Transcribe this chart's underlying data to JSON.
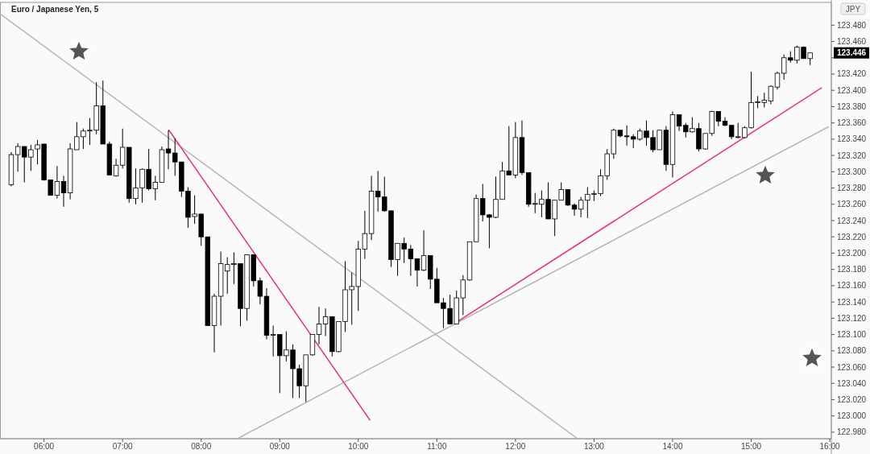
{
  "chart_data": {
    "type": "candlestick",
    "title": "Euro / Japanese Yen, 5",
    "annotations": [
      "JPY",
      {
        "text": "123.446",
        "y": 123.446
      }
    ],
    "xlim": [
      5.44,
      16.02
    ],
    "xticks": [
      {
        "value": 6,
        "label": "06:00"
      },
      {
        "value": 7,
        "label": "07:00"
      },
      {
        "value": 8,
        "label": "08:00"
      },
      {
        "value": 9,
        "label": "09:00"
      },
      {
        "value": 10,
        "label": "10:00"
      },
      {
        "value": 11,
        "label": "11:00"
      },
      {
        "value": 12,
        "label": "12:00"
      },
      {
        "value": 13,
        "label": "13:00"
      },
      {
        "value": 14,
        "label": "14:00"
      },
      {
        "value": 15,
        "label": "15:00"
      },
      {
        "value": 16,
        "label": "16:00"
      }
    ],
    "ylim": [
      122.972,
      123.508
    ],
    "yticks": [
      {
        "value": 122.98,
        "label": "122.980"
      },
      {
        "value": 123,
        "label": "123.000"
      },
      {
        "value": 123.02,
        "label": "123.020"
      },
      {
        "value": 123.04,
        "label": "123.040"
      },
      {
        "value": 123.06,
        "label": "123.060"
      },
      {
        "value": 123.08,
        "label": "123.080"
      },
      {
        "value": 123.1,
        "label": "123.100"
      },
      {
        "value": 123.12,
        "label": "123.120"
      },
      {
        "value": 123.14,
        "label": "123.140"
      },
      {
        "value": 123.16,
        "label": "123.160"
      },
      {
        "value": 123.18,
        "label": "123.180"
      },
      {
        "value": 123.2,
        "label": "123.200"
      },
      {
        "value": 123.22,
        "label": "123.220"
      },
      {
        "value": 123.24,
        "label": "123.240"
      },
      {
        "value": 123.26,
        "label": "123.260"
      },
      {
        "value": 123.28,
        "label": "123.280"
      },
      {
        "value": 123.3,
        "label": "123.300"
      },
      {
        "value": 123.32,
        "label": "123.320"
      },
      {
        "value": 123.34,
        "label": "123.340"
      },
      {
        "value": 123.36,
        "label": "123.360"
      },
      {
        "value": 123.38,
        "label": "123.380"
      },
      {
        "value": 123.4,
        "label": "123.400"
      },
      {
        "value": 123.42,
        "label": "123.420"
      },
      {
        "value": 123.44,
        "label": null
      },
      {
        "value": 123.46,
        "label": "123.460"
      },
      {
        "value": 123.48,
        "label": "123.480"
      }
    ],
    "grid": false,
    "x": [
      5.583,
      5.667,
      5.75,
      5.833,
      5.917,
      6,
      6.083,
      6.167,
      6.25,
      6.333,
      6.417,
      6.5,
      6.583,
      6.667,
      6.75,
      6.833,
      6.917,
      7,
      7.083,
      7.167,
      7.25,
      7.333,
      7.417,
      7.5,
      7.583,
      7.667,
      7.75,
      7.833,
      7.917,
      8,
      8.083,
      8.167,
      8.25,
      8.333,
      8.417,
      8.5,
      8.583,
      8.667,
      8.75,
      8.833,
      8.917,
      9,
      9.083,
      9.167,
      9.25,
      9.333,
      9.417,
      9.5,
      9.583,
      9.667,
      9.75,
      9.833,
      9.917,
      10,
      10.083,
      10.167,
      10.25,
      10.333,
      10.417,
      10.5,
      10.583,
      10.667,
      10.75,
      10.833,
      10.917,
      11,
      11.083,
      11.167,
      11.25,
      11.333,
      11.417,
      11.5,
      11.583,
      11.667,
      11.75,
      11.833,
      11.917,
      12,
      12.083,
      12.167,
      12.25,
      12.333,
      12.417,
      12.5,
      12.583,
      12.667,
      12.75,
      12.833,
      12.917,
      13,
      13.083,
      13.167,
      13.25,
      13.333,
      13.417,
      13.5,
      13.583,
      13.667,
      13.75,
      13.833,
      13.917,
      14,
      14.083,
      14.167,
      14.25,
      14.333,
      14.417,
      14.5,
      14.583,
      14.667,
      14.75,
      14.833,
      14.917,
      15,
      15.083,
      15.167,
      15.25,
      15.333,
      15.417,
      15.5,
      15.583,
      15.667,
      15.75
    ],
    "ohlc": [
      [
        123.284,
        123.324,
        123.282,
        123.321
      ],
      [
        123.321,
        123.335,
        123.3,
        123.331
      ],
      [
        123.331,
        123.331,
        123.287,
        123.318
      ],
      [
        123.318,
        123.333,
        123.301,
        123.327
      ],
      [
        123.328,
        123.339,
        123.309,
        123.333
      ],
      [
        123.334,
        123.334,
        123.289,
        123.29
      ],
      [
        123.29,
        123.29,
        123.271,
        123.271
      ],
      [
        123.271,
        123.307,
        123.267,
        123.288
      ],
      [
        123.288,
        123.295,
        123.257,
        123.274
      ],
      [
        123.274,
        123.335,
        123.266,
        123.328
      ],
      [
        123.327,
        123.361,
        123.327,
        123.343
      ],
      [
        123.343,
        123.353,
        123.328,
        123.35
      ],
      [
        123.35,
        123.366,
        123.333,
        123.351
      ],
      [
        123.351,
        123.41,
        123.346,
        123.381
      ],
      [
        123.381,
        123.412,
        123.334,
        123.334
      ],
      [
        123.334,
        123.337,
        123.296,
        123.296
      ],
      [
        123.295,
        123.316,
        123.294,
        123.308
      ],
      [
        123.308,
        123.353,
        123.304,
        123.33
      ],
      [
        123.33,
        123.33,
        123.262,
        123.267
      ],
      [
        123.267,
        123.304,
        123.26,
        123.28
      ],
      [
        123.28,
        123.304,
        123.262,
        123.303
      ],
      [
        123.303,
        123.328,
        123.277,
        123.279
      ],
      [
        123.279,
        123.295,
        123.265,
        123.287
      ],
      [
        123.287,
        123.331,
        123.287,
        123.327
      ],
      [
        123.328,
        123.351,
        123.303,
        123.323
      ],
      [
        123.323,
        123.341,
        123.295,
        123.312
      ],
      [
        123.312,
        123.312,
        123.269,
        123.276
      ],
      [
        123.276,
        123.281,
        123.231,
        123.244
      ],
      [
        123.245,
        123.271,
        123.236,
        123.248
      ],
      [
        123.248,
        123.248,
        123.209,
        123.22
      ],
      [
        123.22,
        123.22,
        123.111,
        123.111
      ],
      [
        123.111,
        123.15,
        123.078,
        123.147
      ],
      [
        123.147,
        123.202,
        123.111,
        123.187
      ],
      [
        123.178,
        123.195,
        123.15,
        123.186
      ],
      [
        123.186,
        123.201,
        123.162,
        123.187
      ],
      [
        123.187,
        123.187,
        123.11,
        123.132
      ],
      [
        123.132,
        123.198,
        123.117,
        123.198
      ],
      [
        123.198,
        123.198,
        123.159,
        123.166
      ],
      [
        123.166,
        123.17,
        123.137,
        123.147
      ],
      [
        123.147,
        123.157,
        123.094,
        123.099
      ],
      [
        123.099,
        123.111,
        123.073,
        123.1
      ],
      [
        123.1,
        123.1,
        123.028,
        123.074
      ],
      [
        123.074,
        123.104,
        123.067,
        123.081
      ],
      [
        123.081,
        123.088,
        123.022,
        123.058
      ],
      [
        123.058,
        123.063,
        123.022,
        123.037
      ],
      [
        123.037,
        123.075,
        123.017,
        123.075
      ],
      [
        123.075,
        123.1,
        123.074,
        123.1
      ],
      [
        123.1,
        123.134,
        123.088,
        123.113
      ],
      [
        123.113,
        123.132,
        123.098,
        123.122
      ],
      [
        123.122,
        123.122,
        123.073,
        123.079
      ],
      [
        123.079,
        123.116,
        123.078,
        123.116
      ],
      [
        123.116,
        123.19,
        123.103,
        123.155
      ],
      [
        123.155,
        123.176,
        123.112,
        123.159
      ],
      [
        123.159,
        123.215,
        123.129,
        123.205
      ],
      [
        123.205,
        123.252,
        123.193,
        123.224
      ],
      [
        123.224,
        123.295,
        123.216,
        123.276
      ],
      [
        123.276,
        123.301,
        123.251,
        123.269
      ],
      [
        123.269,
        123.294,
        123.251,
        123.252
      ],
      [
        123.252,
        123.252,
        123.183,
        123.192
      ],
      [
        123.192,
        123.212,
        123.172,
        123.212
      ],
      [
        123.212,
        123.219,
        123.188,
        123.205
      ],
      [
        123.205,
        123.21,
        123.172,
        123.193
      ],
      [
        123.193,
        123.193,
        123.159,
        123.179
      ],
      [
        123.179,
        123.228,
        123.178,
        123.197
      ],
      [
        123.197,
        123.197,
        123.156,
        123.168
      ],
      [
        123.168,
        123.182,
        123.139,
        123.139
      ],
      [
        123.139,
        123.145,
        123.108,
        123.132
      ],
      [
        123.132,
        123.149,
        123.113,
        123.113
      ],
      [
        123.113,
        123.154,
        123.113,
        123.145
      ],
      [
        123.145,
        123.173,
        123.124,
        123.167
      ],
      [
        123.167,
        123.214,
        123.166,
        123.214
      ],
      [
        123.214,
        123.272,
        123.214,
        123.267
      ],
      [
        123.267,
        123.285,
        123.239,
        123.247
      ],
      [
        123.247,
        123.248,
        123.206,
        123.244
      ],
      [
        123.244,
        123.294,
        123.243,
        123.266
      ],
      [
        123.266,
        123.312,
        123.266,
        123.301
      ],
      [
        123.301,
        123.356,
        123.296,
        123.296
      ],
      [
        123.296,
        123.361,
        123.292,
        123.342
      ],
      [
        123.342,
        123.363,
        123.296,
        123.299
      ],
      [
        123.299,
        123.299,
        123.257,
        123.26
      ],
      [
        123.26,
        123.274,
        123.249,
        123.261
      ],
      [
        123.26,
        123.277,
        123.244,
        123.266
      ],
      [
        123.266,
        123.287,
        123.242,
        123.242
      ],
      [
        123.242,
        123.265,
        123.221,
        123.265
      ],
      [
        123.265,
        123.287,
        123.265,
        123.278
      ],
      [
        123.278,
        123.278,
        123.258,
        123.259
      ],
      [
        123.259,
        123.261,
        123.246,
        123.254
      ],
      [
        123.254,
        123.269,
        123.244,
        123.265
      ],
      [
        123.265,
        123.281,
        123.243,
        123.272
      ],
      [
        123.272,
        123.277,
        123.264,
        123.273
      ],
      [
        123.273,
        123.303,
        123.27,
        123.295
      ],
      [
        123.295,
        123.328,
        123.29,
        123.322
      ],
      [
        123.322,
        123.353,
        123.316,
        123.351
      ],
      [
        123.351,
        123.351,
        123.342,
        123.344
      ],
      [
        123.344,
        123.357,
        123.332,
        123.343
      ],
      [
        123.343,
        123.346,
        123.329,
        123.34
      ],
      [
        123.34,
        123.353,
        123.338,
        123.35
      ],
      [
        123.35,
        123.363,
        123.332,
        123.342
      ],
      [
        123.342,
        123.351,
        123.324,
        123.327
      ],
      [
        123.327,
        123.351,
        123.327,
        123.351
      ],
      [
        123.351,
        123.356,
        123.301,
        123.309
      ],
      [
        123.309,
        123.374,
        123.293,
        123.37
      ],
      [
        123.37,
        123.37,
        123.35,
        123.356
      ],
      [
        123.357,
        123.36,
        123.342,
        123.349
      ],
      [
        123.349,
        123.367,
        123.348,
        123.353
      ],
      [
        123.353,
        123.36,
        123.325,
        123.328
      ],
      [
        123.328,
        123.347,
        123.327,
        123.347
      ],
      [
        123.347,
        123.375,
        123.344,
        123.374
      ],
      [
        123.374,
        123.374,
        123.356,
        123.362
      ],
      [
        123.362,
        123.367,
        123.356,
        123.357
      ],
      [
        123.357,
        123.357,
        123.34,
        123.343
      ],
      [
        123.343,
        123.36,
        123.341,
        123.343
      ],
      [
        123.342,
        123.356,
        123.341,
        123.354
      ],
      [
        123.354,
        123.423,
        123.353,
        123.385
      ],
      [
        123.385,
        123.393,
        123.378,
        123.386
      ],
      [
        123.385,
        123.397,
        123.379,
        123.388
      ],
      [
        123.387,
        123.406,
        123.383,
        123.405
      ],
      [
        123.404,
        123.423,
        123.401,
        123.421
      ],
      [
        123.421,
        123.444,
        123.413,
        123.44
      ],
      [
        123.44,
        123.448,
        123.434,
        123.437
      ],
      [
        123.437,
        123.455,
        123.433,
        123.453
      ],
      [
        123.453,
        123.454,
        123.439,
        123.439
      ],
      [
        123.439,
        123.446,
        123.431,
        123.446
      ]
    ],
    "series": [
      {
        "type": "line",
        "color": "#b5b5b5",
        "x": [
          5.44,
          12.79
        ],
        "values": [
          123.494,
          122.972
        ]
      },
      {
        "type": "line",
        "color": "#b5b5b5",
        "x": [
          8.46,
          15.98
        ],
        "values": [
          122.972,
          123.355
        ]
      },
      {
        "type": "line",
        "color": "#e8336b",
        "x": [
          7.591,
          10.147
        ],
        "values": [
          123.351,
          122.995
        ]
      },
      {
        "type": "line",
        "color": "#e8336b",
        "x": [
          11.28,
          15.894
        ],
        "values": [
          123.117,
          123.403
        ]
      }
    ]
  }
}
